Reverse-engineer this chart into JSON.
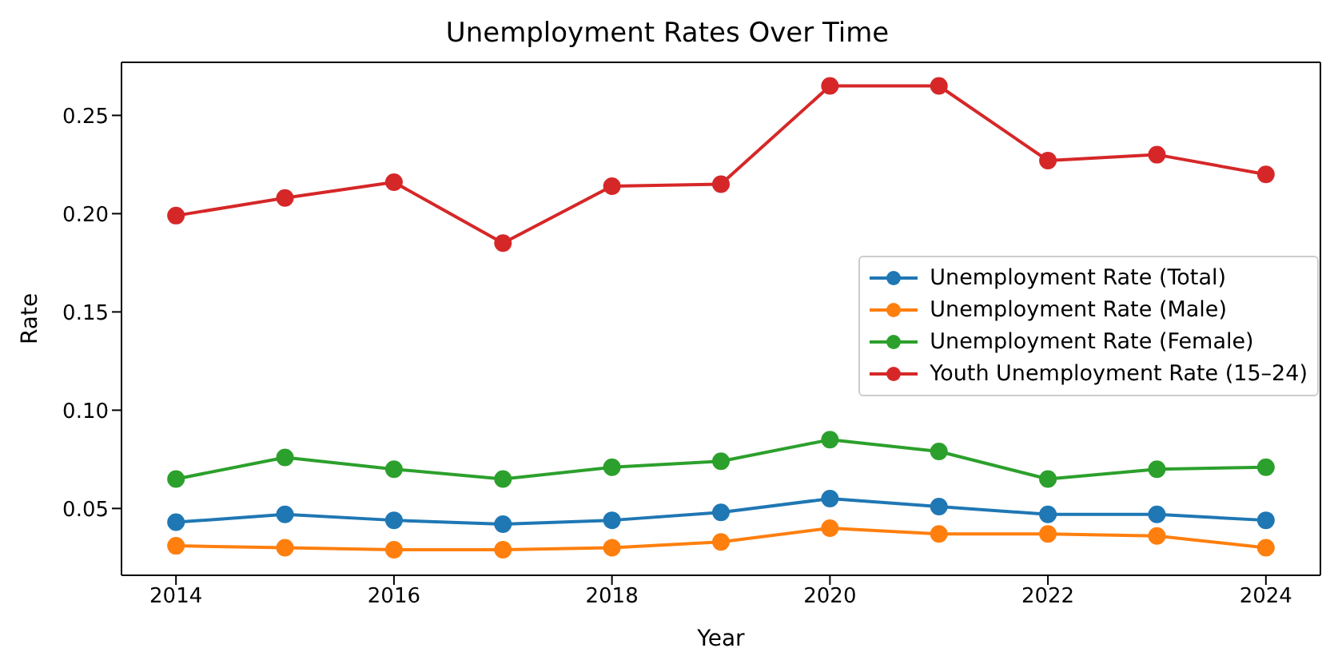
{
  "chart_data": {
    "type": "line",
    "title": "Unemployment Rates Over Time",
    "xlabel": "Year",
    "ylabel": "Rate",
    "x": [
      2014,
      2015,
      2016,
      2017,
      2018,
      2019,
      2020,
      2021,
      2022,
      2023,
      2024
    ],
    "series": [
      {
        "name": "Unemployment Rate (Total)",
        "color": "#1f77b4",
        "values": [
          0.043,
          0.047,
          0.044,
          0.042,
          0.044,
          0.048,
          0.055,
          0.051,
          0.047,
          0.047,
          0.044
        ]
      },
      {
        "name": "Unemployment Rate (Male)",
        "color": "#ff7f0e",
        "values": [
          0.031,
          0.03,
          0.029,
          0.029,
          0.03,
          0.033,
          0.04,
          0.037,
          0.037,
          0.036,
          0.03
        ]
      },
      {
        "name": "Unemployment Rate (Female)",
        "color": "#2ca02c",
        "values": [
          0.065,
          0.076,
          0.07,
          0.065,
          0.071,
          0.074,
          0.085,
          0.079,
          0.065,
          0.07,
          0.071
        ]
      },
      {
        "name": "Youth Unemployment Rate (15–24)",
        "color": "#d62728",
        "values": [
          0.199,
          0.208,
          0.216,
          0.185,
          0.214,
          0.215,
          0.265,
          0.265,
          0.227,
          0.23,
          0.22
        ]
      }
    ],
    "xlim": [
      2013.5,
      2024.5
    ],
    "xticks": [
      2014,
      2016,
      2018,
      2020,
      2022,
      2024
    ],
    "ylim": [
      0.016,
      0.277
    ],
    "yticks": [
      0.05,
      {
        "value": 0.1,
        "label": "0.10"
      },
      0.15,
      {
        "value": 0.2,
        "label": "0.20"
      },
      0.25
    ],
    "grid": false,
    "legend": "right",
    "marker": "circle",
    "line_style": "solid"
  }
}
